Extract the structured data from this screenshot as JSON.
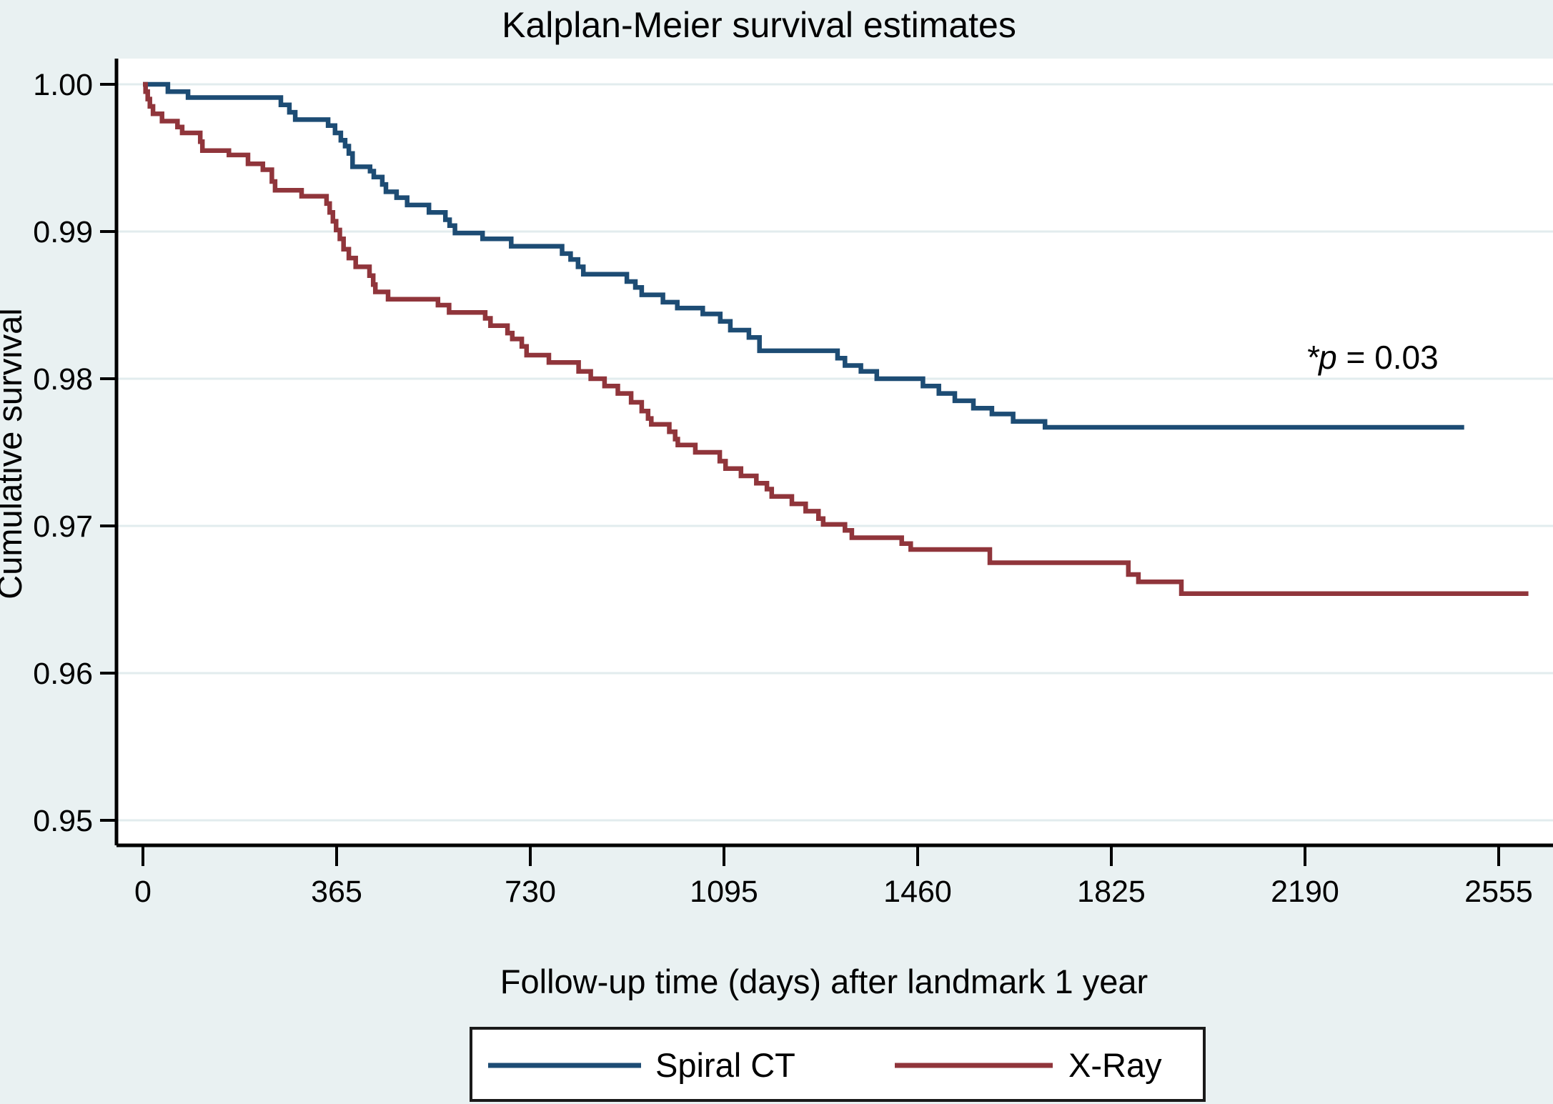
{
  "title": "Kalplan-Meier survival estimates",
  "annotation": {
    "italic": "*p",
    "rest": " = 0.03"
  },
  "colors": {
    "background": "#e9f1f2",
    "plot_background": "#ffffff",
    "gridline": "#e2ecee",
    "axis": "#000000",
    "spiral_ct": "#1d4c74",
    "x_ray": "#90353b",
    "legend_border": "#1a1a1a",
    "legend_background": "#ffffff"
  },
  "legend": {
    "items": [
      {
        "label": "Spiral CT",
        "color": "#1d4c74"
      },
      {
        "label": "X-Ray",
        "color": "#90353b"
      }
    ]
  },
  "chart_data": {
    "type": "line",
    "subtype": "kaplan-meier-step",
    "title": "Kalplan-Meier survival estimates",
    "xlabel": "Follow-up time (days) after landmark 1 year",
    "ylabel": "Cumulative survival",
    "x_ticks": [
      0,
      365,
      730,
      1095,
      1460,
      1825,
      2190,
      2555
    ],
    "y_ticks": [
      0.95,
      0.96,
      0.97,
      0.98,
      0.99,
      1.0
    ],
    "xlim": [
      0,
      2660
    ],
    "ylim": [
      0.95,
      1.0
    ],
    "grid": "horizontal",
    "legend_position": "bottom",
    "annotation": "*p = 0.03",
    "series": [
      {
        "name": "Spiral CT",
        "color": "#1d4c74",
        "points": [
          [
            0,
            1.0
          ],
          [
            47,
            0.9995
          ],
          [
            85,
            0.9991
          ],
          [
            260,
            0.9986
          ],
          [
            276,
            0.9981
          ],
          [
            287,
            0.9976
          ],
          [
            349,
            0.9972
          ],
          [
            362,
            0.9967
          ],
          [
            373,
            0.9962
          ],
          [
            381,
            0.9958
          ],
          [
            388,
            0.9953
          ],
          [
            395,
            0.9944
          ],
          [
            428,
            0.9941
          ],
          [
            435,
            0.9937
          ],
          [
            451,
            0.9932
          ],
          [
            458,
            0.9927
          ],
          [
            478,
            0.9923
          ],
          [
            498,
            0.9918
          ],
          [
            539,
            0.9913
          ],
          [
            570,
            0.9908
          ],
          [
            578,
            0.9904
          ],
          [
            588,
            0.9899
          ],
          [
            640,
            0.9895
          ],
          [
            694,
            0.989
          ],
          [
            790,
            0.9885
          ],
          [
            806,
            0.9881
          ],
          [
            820,
            0.9876
          ],
          [
            830,
            0.9871
          ],
          [
            912,
            0.9866
          ],
          [
            928,
            0.9862
          ],
          [
            940,
            0.9857
          ],
          [
            980,
            0.9852
          ],
          [
            1007,
            0.9848
          ],
          [
            1055,
            0.9844
          ],
          [
            1088,
            0.9839
          ],
          [
            1107,
            0.9833
          ],
          [
            1142,
            0.9828
          ],
          [
            1162,
            0.9819
          ],
          [
            1309,
            0.9814
          ],
          [
            1323,
            0.9809
          ],
          [
            1353,
            0.9805
          ],
          [
            1383,
            0.98
          ],
          [
            1470,
            0.9795
          ],
          [
            1500,
            0.979
          ],
          [
            1530,
            0.9785
          ],
          [
            1565,
            0.978
          ],
          [
            1600,
            0.9776
          ],
          [
            1640,
            0.9771
          ],
          [
            1700,
            0.9767
          ],
          [
            2490,
            0.9767
          ]
        ]
      },
      {
        "name": "X-Ray",
        "color": "#90353b",
        "points": [
          [
            0,
            1.0
          ],
          [
            5,
            0.9995
          ],
          [
            9,
            0.999
          ],
          [
            13,
            0.9985
          ],
          [
            19,
            0.998
          ],
          [
            36,
            0.9975
          ],
          [
            65,
            0.9971
          ],
          [
            74,
            0.9967
          ],
          [
            108,
            0.9961
          ],
          [
            112,
            0.9955
          ],
          [
            162,
            0.9952
          ],
          [
            198,
            0.9946
          ],
          [
            226,
            0.9942
          ],
          [
            243,
            0.9934
          ],
          [
            249,
            0.9928
          ],
          [
            299,
            0.9924
          ],
          [
            346,
            0.9919
          ],
          [
            352,
            0.9913
          ],
          [
            358,
            0.9907
          ],
          [
            364,
            0.9901
          ],
          [
            371,
            0.9895
          ],
          [
            378,
            0.9888
          ],
          [
            388,
            0.9882
          ],
          [
            401,
            0.9876
          ],
          [
            427,
            0.987
          ],
          [
            434,
            0.9864
          ],
          [
            438,
            0.9859
          ],
          [
            462,
            0.9854
          ],
          [
            556,
            0.985
          ],
          [
            577,
            0.9845
          ],
          [
            645,
            0.9841
          ],
          [
            655,
            0.9836
          ],
          [
            687,
            0.9831
          ],
          [
            696,
            0.9827
          ],
          [
            714,
            0.9822
          ],
          [
            723,
            0.9816
          ],
          [
            765,
            0.9811
          ],
          [
            821,
            0.9805
          ],
          [
            844,
            0.98
          ],
          [
            870,
            0.9795
          ],
          [
            895,
            0.979
          ],
          [
            920,
            0.9784
          ],
          [
            940,
            0.9778
          ],
          [
            952,
            0.9773
          ],
          [
            958,
            0.9769
          ],
          [
            992,
            0.9764
          ],
          [
            1003,
            0.9759
          ],
          [
            1008,
            0.9755
          ],
          [
            1041,
            0.975
          ],
          [
            1087,
            0.9744
          ],
          [
            1098,
            0.9739
          ],
          [
            1127,
            0.9734
          ],
          [
            1156,
            0.9729
          ],
          [
            1176,
            0.9725
          ],
          [
            1185,
            0.972
          ],
          [
            1223,
            0.9715
          ],
          [
            1249,
            0.971
          ],
          [
            1273,
            0.9705
          ],
          [
            1282,
            0.9701
          ],
          [
            1323,
            0.9697
          ],
          [
            1336,
            0.9692
          ],
          [
            1430,
            0.9688
          ],
          [
            1447,
            0.9684
          ],
          [
            1596,
            0.9675
          ],
          [
            1857,
            0.9667
          ],
          [
            1876,
            0.9662
          ],
          [
            1957,
            0.9654
          ],
          [
            2611,
            0.9654
          ]
        ]
      }
    ]
  }
}
